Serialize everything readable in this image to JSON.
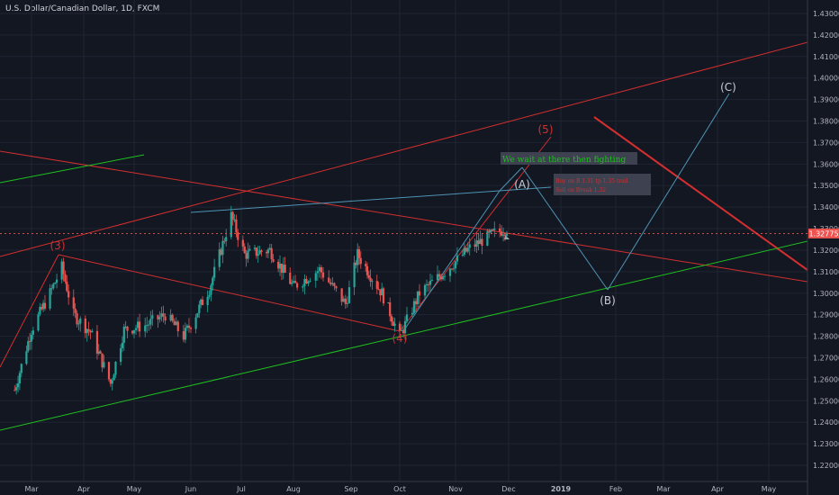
{
  "header": {
    "symbol_title": "U.S. Dollar/Canadian Dollar, 1D, FXCM"
  },
  "colors": {
    "background": "#131722",
    "grid": "#1f2433",
    "up_candle": "#26a69a",
    "down_candle": "#ef5350",
    "trend_red": "#d32f2f",
    "trend_green": "#1ec01e",
    "projection_blue": "#4f93b4",
    "price_tag": "#ef5350"
  },
  "annotations": {
    "wave_3": "(3)",
    "wave_4": "(4)",
    "wave_5": "(5)",
    "wave_A": "(A)",
    "wave_B": "(B)",
    "wave_C": "(C)",
    "note_main": "We wait at there then fighting",
    "note_small_line1": "Buy on B 1.31 tp 1.35 trail",
    "note_small_line2": "Sell on Break 1.32"
  },
  "chart_data": {
    "type": "candlestick",
    "title": "U.S. Dollar/Canadian Dollar, 1D, FXCM",
    "last_price_label": "1.32775",
    "last_price": 1.32775,
    "ylim": [
      1.215,
      1.435
    ],
    "y_ticks": [
      "1.43000",
      "1.42000",
      "1.41000",
      "1.40000",
      "1.39000",
      "1.38000",
      "1.37000",
      "1.36000",
      "1.35000",
      "1.34000",
      "1.33000",
      "1.32000",
      "1.31000",
      "1.30000",
      "1.29000",
      "1.28000",
      "1.27000",
      "1.26000",
      "1.25000",
      "1.24000",
      "1.23000",
      "1.22000"
    ],
    "x_ticks": [
      "Mar",
      "Apr",
      "May",
      "Jun",
      "Jul",
      "Aug",
      "Sep",
      "Oct",
      "Nov",
      "Dec",
      "2019",
      "Feb",
      "Mar",
      "Apr",
      "May"
    ],
    "grid": true,
    "price_path": [
      {
        "date": "2018-02-19",
        "close": 1.255
      },
      {
        "date": "2018-03-01",
        "close": 1.283
      },
      {
        "date": "2018-03-12",
        "close": 1.3
      },
      {
        "date": "2018-03-19",
        "close": 1.312
      },
      {
        "date": "2018-03-26",
        "close": 1.29
      },
      {
        "date": "2018-04-05",
        "close": 1.282
      },
      {
        "date": "2018-04-17",
        "close": 1.258
      },
      {
        "date": "2018-04-25",
        "close": 1.283
      },
      {
        "date": "2018-05-07",
        "close": 1.285
      },
      {
        "date": "2018-05-18",
        "close": 1.29
      },
      {
        "date": "2018-05-28",
        "close": 1.28
      },
      {
        "date": "2018-06-12",
        "close": 1.302
      },
      {
        "date": "2018-06-25",
        "close": 1.336
      },
      {
        "date": "2018-07-03",
        "close": 1.318
      },
      {
        "date": "2018-07-18",
        "close": 1.32
      },
      {
        "date": "2018-08-01",
        "close": 1.303
      },
      {
        "date": "2018-08-15",
        "close": 1.311
      },
      {
        "date": "2018-08-29",
        "close": 1.295
      },
      {
        "date": "2018-09-05",
        "close": 1.318
      },
      {
        "date": "2018-09-20",
        "close": 1.3
      },
      {
        "date": "2018-10-01",
        "close": 1.28
      },
      {
        "date": "2018-10-12",
        "close": 1.3
      },
      {
        "date": "2018-10-26",
        "close": 1.31
      },
      {
        "date": "2018-11-09",
        "close": 1.321
      },
      {
        "date": "2018-11-23",
        "close": 1.328
      },
      {
        "date": "2018-11-30",
        "close": 1.33
      }
    ]
  }
}
